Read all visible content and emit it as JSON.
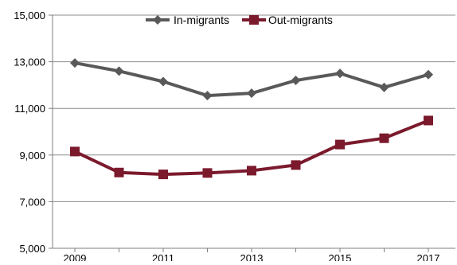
{
  "chart_data": {
    "type": "line",
    "title": "",
    "xlabel": "",
    "ylabel": "",
    "ylim": [
      5000,
      15000
    ],
    "yticks": [
      "5,000",
      "7,000",
      "9,000",
      "11,000",
      "13,000",
      "15,000"
    ],
    "ytick_values": [
      5000,
      7000,
      9000,
      11000,
      13000,
      15000
    ],
    "x": [
      2009,
      2010,
      2011,
      2012,
      2013,
      2014,
      2015,
      2016,
      2017
    ],
    "xticks": [
      "2009",
      "2011",
      "2013",
      "2015",
      "2017"
    ],
    "xtick_values": [
      2009,
      2011,
      2013,
      2015,
      2017
    ],
    "grid": "horizontal",
    "legend_position": "top-center",
    "series": [
      {
        "name": "In-migrants",
        "color": "#595959",
        "marker": "diamond",
        "values": [
          12950,
          12600,
          12150,
          11550,
          11650,
          12200,
          12500,
          11900,
          12450
        ]
      },
      {
        "name": "Out-migrants",
        "color": "#7b1a2c",
        "marker": "square",
        "values": [
          9150,
          8250,
          8170,
          8230,
          8330,
          8570,
          9450,
          9720,
          10480
        ]
      }
    ]
  }
}
